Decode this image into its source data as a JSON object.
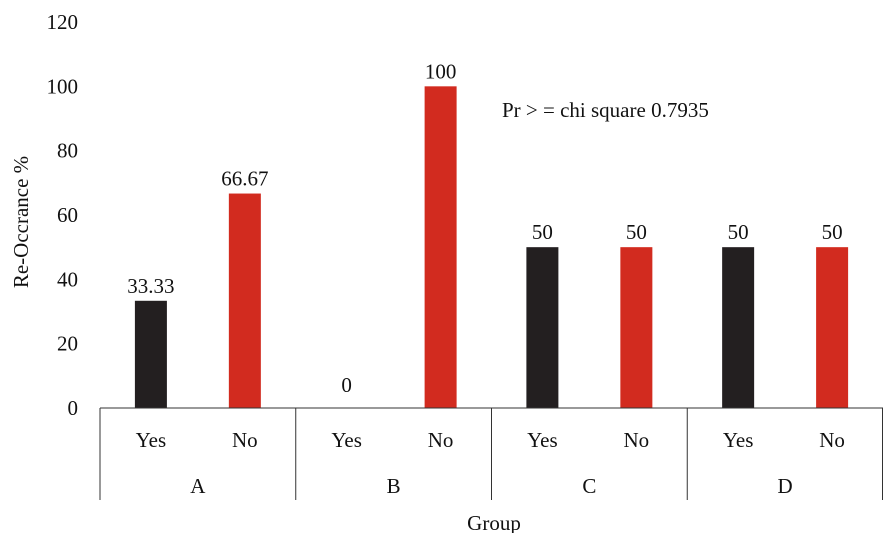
{
  "chart_data": {
    "type": "bar",
    "ylabel": "Re-Occrance  %",
    "xlabel": "Group",
    "ylim": [
      0,
      120
    ],
    "yticks": [
      0,
      20,
      40,
      60,
      80,
      100,
      120
    ],
    "groups": [
      "A",
      "B",
      "C",
      "D"
    ],
    "categories": [
      "Yes",
      "No"
    ],
    "bars": [
      {
        "group": "A",
        "category": "Yes",
        "value": 33.33,
        "label": "33.33"
      },
      {
        "group": "A",
        "category": "No",
        "value": 66.67,
        "label": "66.67"
      },
      {
        "group": "B",
        "category": "Yes",
        "value": 0,
        "label": "0"
      },
      {
        "group": "B",
        "category": "No",
        "value": 100,
        "label": "100"
      },
      {
        "group": "C",
        "category": "Yes",
        "value": 50,
        "label": "50"
      },
      {
        "group": "C",
        "category": "No",
        "value": 50,
        "label": "50"
      },
      {
        "group": "D",
        "category": "Yes",
        "value": 50,
        "label": "50"
      },
      {
        "group": "D",
        "category": "No",
        "value": 50,
        "label": "50"
      }
    ],
    "colors": {
      "Yes": "#231f20",
      "No": "#d22b1f"
    },
    "annotation": "Pr > = chi square 0.7935",
    "grid": false
  }
}
